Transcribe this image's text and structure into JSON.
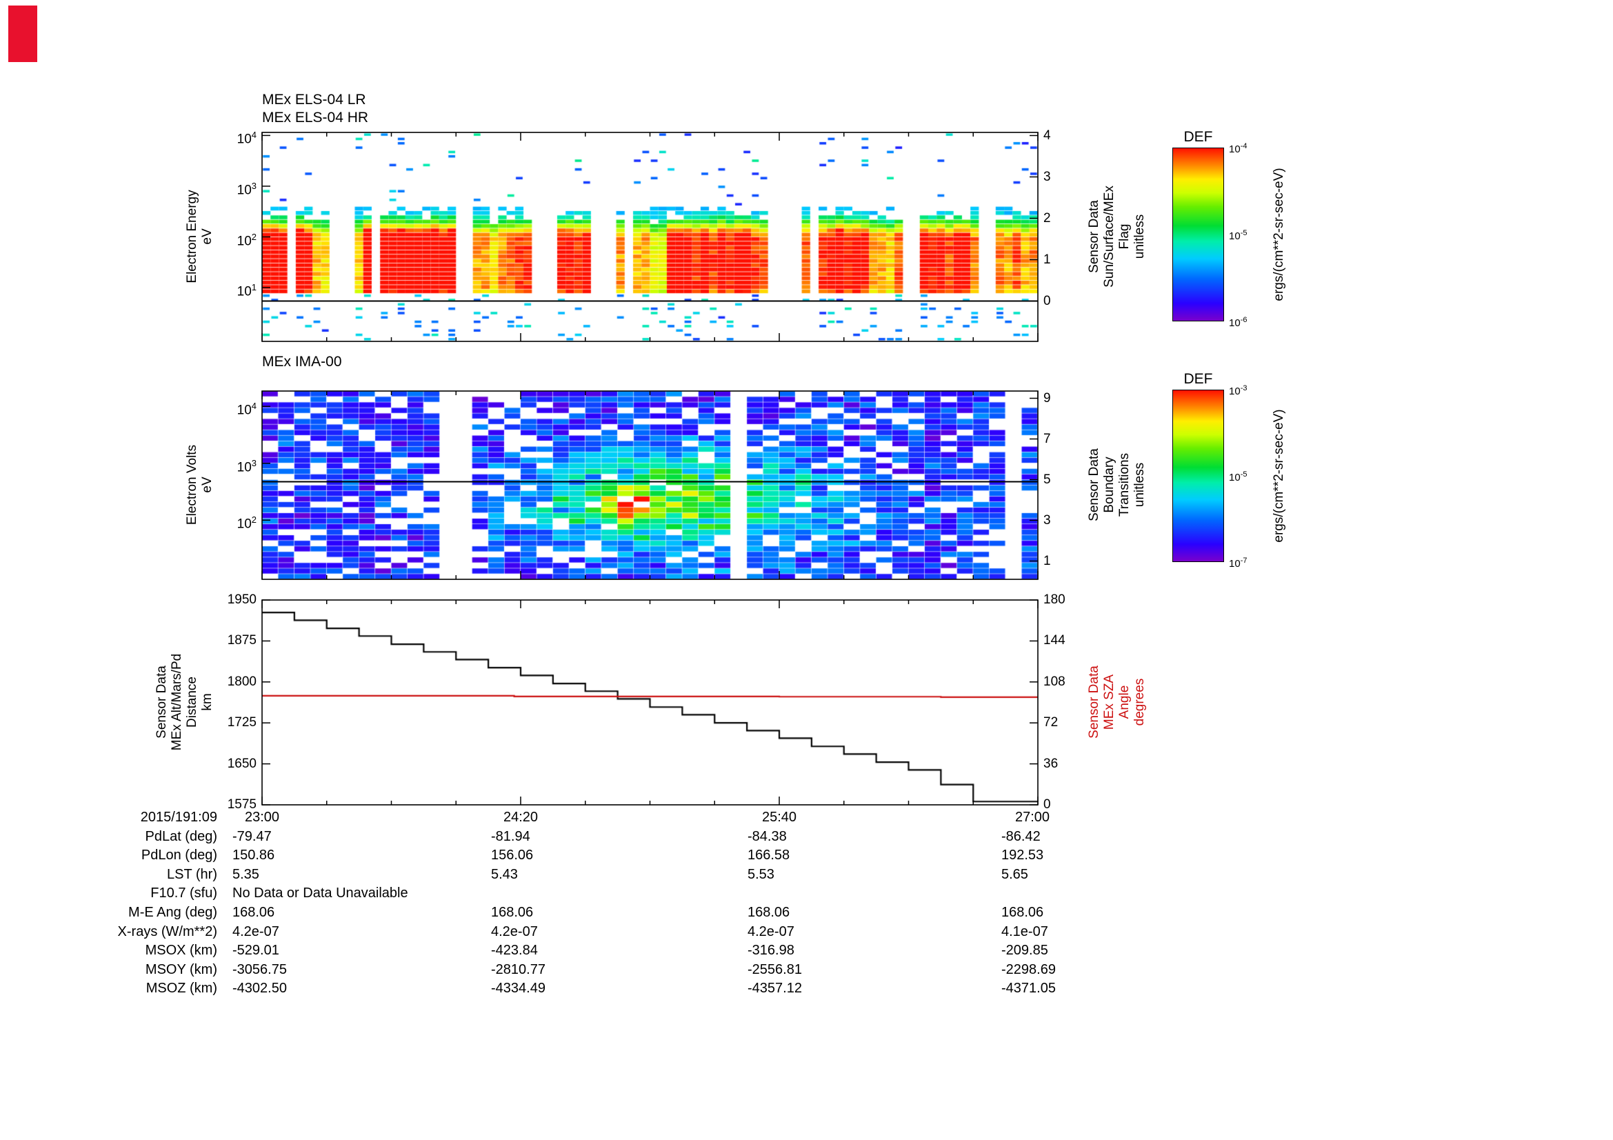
{
  "corner_marker": {
    "color": "#e8112d"
  },
  "palette": {
    "stops": [
      [
        0.0,
        "#7a00cc"
      ],
      [
        0.1,
        "#2a00ff"
      ],
      [
        0.24,
        "#0066ff"
      ],
      [
        0.36,
        "#00ccff"
      ],
      [
        0.46,
        "#00eeaa"
      ],
      [
        0.55,
        "#00dd33"
      ],
      [
        0.66,
        "#66ee00"
      ],
      [
        0.74,
        "#ccff00"
      ],
      [
        0.82,
        "#ffee00"
      ],
      [
        0.9,
        "#ff8800"
      ],
      [
        1.0,
        "#ff1100"
      ]
    ]
  },
  "time_axis": {
    "date_label": "2015/191:09",
    "tick_labels": [
      "23:00",
      "24:20",
      "25:40",
      "27:00"
    ],
    "tick_minutes": [
      0,
      80,
      160,
      240
    ],
    "minor_step_minutes": 20
  },
  "chart_data": [
    {
      "id": "els",
      "type": "heatmap",
      "title_lines": [
        "MEx ELS-04 LR",
        "MEx ELS-04 HR"
      ],
      "ylabel_lines": [
        "Electron Energy",
        "eV"
      ],
      "yticks": [
        {
          "mant": "10",
          "exp": "4"
        },
        {
          "mant": "10",
          "exp": "3"
        },
        {
          "mant": "10",
          "exp": "2"
        },
        {
          "mant": "10",
          "exp": "1"
        }
      ],
      "ytick_logs": [
        4,
        3,
        2,
        1
      ],
      "ylog_top": 4.06,
      "ylog_bottom": -0.06,
      "right_axis": {
        "label_lines": [
          "Sensor Data",
          "Sun/Surface/MEx",
          "Flag",
          "unitless"
        ],
        "ticks": [
          4,
          3,
          2,
          1,
          0
        ]
      },
      "overlay_line_value": 0,
      "overlay_line_color": "#000000",
      "proc": {
        "seed": 20150191,
        "n_cols": 92,
        "n_bins": 48,
        "gap_prob": 0.12,
        "band_lo": 1.05,
        "band_hi": 1.95,
        "band_edge_sigma": 0.28,
        "sparse_top_prob": 0.055,
        "sparse_bottom_prob": 0.18
      }
    },
    {
      "id": "ima",
      "type": "heatmap",
      "title_lines": [
        "MEx IMA-00"
      ],
      "ylabel_lines": [
        "Electron Volts",
        "eV"
      ],
      "yticks": [
        {
          "mant": "10",
          "exp": "4"
        },
        {
          "mant": "10",
          "exp": "3"
        },
        {
          "mant": "10",
          "exp": "2"
        }
      ],
      "ytick_logs": [
        4,
        3,
        2
      ],
      "ylog_top": 4.27,
      "ylog_bottom": 0.96,
      "right_axis": {
        "label_lines": [
          "Sensor Data",
          "Boundary",
          "Transitions",
          "unitless"
        ],
        "ticks": [
          9,
          7,
          5,
          3,
          1
        ]
      },
      "overlay_line_value": 4.9,
      "overlay_line_color": "#000000",
      "proc": {
        "seed": 771915,
        "n_cols": 48,
        "n_bins": 34,
        "base_white": 0.26,
        "full_white_col_prob": 0.05,
        "blob_cx": 0.54,
        "blob_cl": 2.35,
        "hot_cx": 0.47,
        "hot_cl": 2.25
      }
    },
    {
      "id": "alt-sza",
      "type": "line",
      "ylabel_lines": [
        "Sensor Data",
        "MEx Alt/Mars/Pd",
        "Distance",
        "km"
      ],
      "yticks": [
        1950,
        1875,
        1800,
        1725,
        1650,
        1575
      ],
      "ylim": [
        1575,
        1950
      ],
      "right_axis": {
        "label_lines": [
          "Sensor Data",
          "MEx SZA",
          "Angle",
          "degrees"
        ],
        "ticks": [
          180,
          144,
          108,
          72,
          36,
          0
        ],
        "ylim": [
          0,
          180
        ],
        "color": "#cc1111"
      },
      "xticks": [
        "23:00",
        "24:20",
        "25:40",
        "27:00"
      ],
      "series": [
        {
          "name": "MEx Alt/Mars/Pd Distance",
          "axis": "left",
          "color": "#000000",
          "step": true,
          "x_minutes": [
            0,
            10,
            20,
            30,
            40,
            50,
            60,
            70,
            80,
            90,
            100,
            110,
            120,
            130,
            140,
            150,
            160,
            170,
            180,
            190,
            200,
            210,
            220,
            230,
            240
          ],
          "values": [
            1927,
            1913,
            1898,
            1884,
            1869,
            1855,
            1841,
            1826,
            1812,
            1797,
            1783,
            1769,
            1754,
            1740,
            1725,
            1711,
            1697,
            1682,
            1668,
            1653,
            1639,
            1612,
            1581,
            1581,
            1581
          ]
        },
        {
          "name": "MEx SZA Angle",
          "axis": "right",
          "color": "#cc1111",
          "step": true,
          "x_minutes": [
            0,
            78,
            160,
            210,
            240
          ],
          "values": [
            95.8,
            95.2,
            95.0,
            94.6,
            94.6
          ]
        }
      ]
    }
  ],
  "colorbars": [
    {
      "title": "DEF",
      "ticks": [
        {
          "mant": "10",
          "exp": "-4"
        },
        {
          "mant": "10",
          "exp": "-5"
        },
        {
          "mant": "10",
          "exp": "-6"
        }
      ],
      "unit": "ergs/(cm**2-sr-sec-eV)"
    },
    {
      "title": "DEF",
      "ticks": [
        {
          "mant": "10",
          "exp": "-3"
        },
        {
          "mant": "10",
          "exp": "-5"
        },
        {
          "mant": "10",
          "exp": "-7"
        }
      ],
      "unit": "ergs/(cm**2-sr-sec-eV)"
    }
  ],
  "table": {
    "rows": [
      {
        "label": "PdLat (deg)",
        "values": [
          "-79.47",
          "-81.94",
          "-84.38",
          "-86.42"
        ]
      },
      {
        "label": "PdLon (deg)",
        "values": [
          "150.86",
          "156.06",
          "166.58",
          "192.53"
        ]
      },
      {
        "label": "LST (hr)",
        "values": [
          "5.35",
          "5.43",
          "5.53",
          "5.65"
        ]
      },
      {
        "label": "F10.7 (sfu)",
        "values": [
          "No Data or Data Unavailable"
        ],
        "span": true
      },
      {
        "label": "M-E Ang (deg)",
        "values": [
          "168.06",
          "168.06",
          "168.06",
          "168.06"
        ]
      },
      {
        "label": "X-rays (W/m**2)",
        "values": [
          "4.2e-07",
          "4.2e-07",
          "4.2e-07",
          "4.1e-07"
        ]
      },
      {
        "label": "MSOX (km)",
        "values": [
          "-529.01",
          "-423.84",
          "-316.98",
          "-209.85"
        ]
      },
      {
        "label": "MSOY (km)",
        "values": [
          "-3056.75",
          "-2810.77",
          "-2556.81",
          "-2298.69"
        ]
      },
      {
        "label": "MSOZ (km)",
        "values": [
          "-4302.50",
          "-4334.49",
          "-4357.12",
          "-4371.05"
        ]
      }
    ]
  }
}
